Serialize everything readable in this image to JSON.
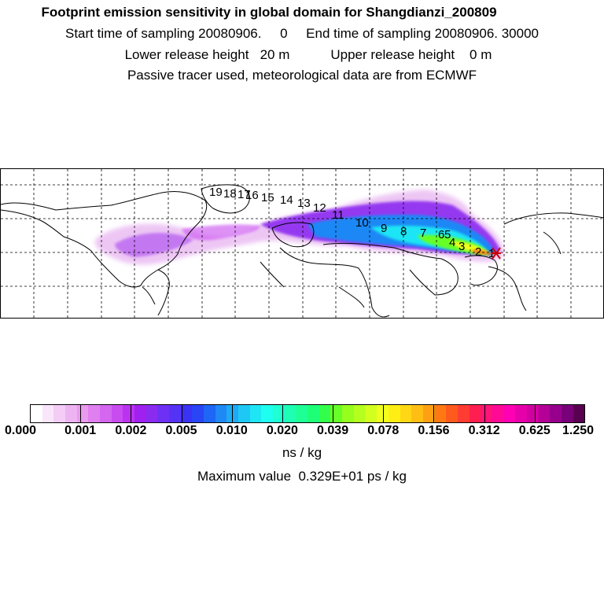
{
  "header": {
    "line1": "Footprint emission sensitivity in global domain for Shangdianzi_200809",
    "line2": "Start time of sampling 20080906.     0     End time of sampling 20080906. 30000",
    "line3": "Lower release height   20 m           Upper release height    0 m",
    "line4": "Passive tracer used, meteorological data are from ECMWF"
  },
  "map": {
    "release_marker_icon": "star-icon",
    "trajectory_labels": [
      "1",
      "2",
      "3",
      "4",
      "5",
      "6",
      "7",
      "8",
      "9",
      "10",
      "11",
      "12",
      "13",
      "14",
      "15",
      "16",
      "17",
      "18",
      "19"
    ]
  },
  "colorbar": {
    "colors": [
      "#ffffff",
      "#f9e6fb",
      "#f3cdf6",
      "#eeb4f2",
      "#e99bee",
      "#e080f0",
      "#d466f0",
      "#c94cf0",
      "#bb33f0",
      "#a020f0",
      "#8a2cf0",
      "#6f30f5",
      "#5533f5",
      "#3a33f5",
      "#2a45f5",
      "#1e66f5",
      "#1e88f5",
      "#1eaaf5",
      "#1ec8f5",
      "#1ee6f5",
      "#1effef",
      "#1effd2",
      "#1effb4",
      "#1eff96",
      "#1eff78",
      "#32ff4b",
      "#66ff28",
      "#96ff1e",
      "#b4ff1e",
      "#d2ff1e",
      "#f0ff1e",
      "#ffee14",
      "#ffd714",
      "#ffbe14",
      "#ffa014",
      "#ff7814",
      "#ff5a1e",
      "#ff3c32",
      "#ff1e50",
      "#ff1478",
      "#ff0a96",
      "#ff00b4",
      "#e600aa",
      "#d200a0",
      "#b40096",
      "#96008c",
      "#780078",
      "#5a0050"
    ],
    "tick_labels": [
      "0.000",
      "0.001",
      "0.002",
      "0.005",
      "0.010",
      "0.020",
      "0.039",
      "0.078",
      "0.156",
      "0.312",
      "0.625",
      "1.250"
    ],
    "unit": "ns / kg",
    "max_value": "Maximum value  0.329E+01 ps / kg"
  }
}
